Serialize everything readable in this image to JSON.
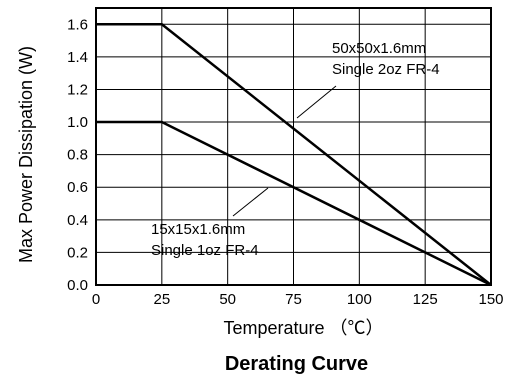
{
  "chart_data": {
    "type": "line",
    "title": "Derating Curve",
    "xlabel": "Temperature （℃）",
    "ylabel": "Max Power Dissipation (W)",
    "xlim": [
      0,
      150
    ],
    "ylim": [
      0,
      1.7
    ],
    "x_ticks": [
      "0",
      "25",
      "50",
      "75",
      "100",
      "125",
      "150"
    ],
    "y_ticks": [
      "0.0",
      "0.2",
      "0.4",
      "0.6",
      "0.8",
      "1.0",
      "1.2",
      "1.4",
      "1.6"
    ],
    "grid": true,
    "series": [
      {
        "name": "50x50x1.6mm Single 2oz FR-4",
        "x": [
          0,
          25,
          150
        ],
        "y": [
          1.6,
          1.6,
          0.0
        ]
      },
      {
        "name": "15x15x1.6mm Single 1oz FR-4",
        "x": [
          0,
          25,
          150
        ],
        "y": [
          1.0,
          1.0,
          0.0
        ]
      }
    ],
    "annotations": [
      {
        "lines": [
          "50x50x1.6mm",
          "Single 2oz FR-4"
        ],
        "series": 0
      },
      {
        "lines": [
          "15x15x1.6mm",
          "Single 1oz FR-4"
        ],
        "series": 1
      }
    ]
  }
}
